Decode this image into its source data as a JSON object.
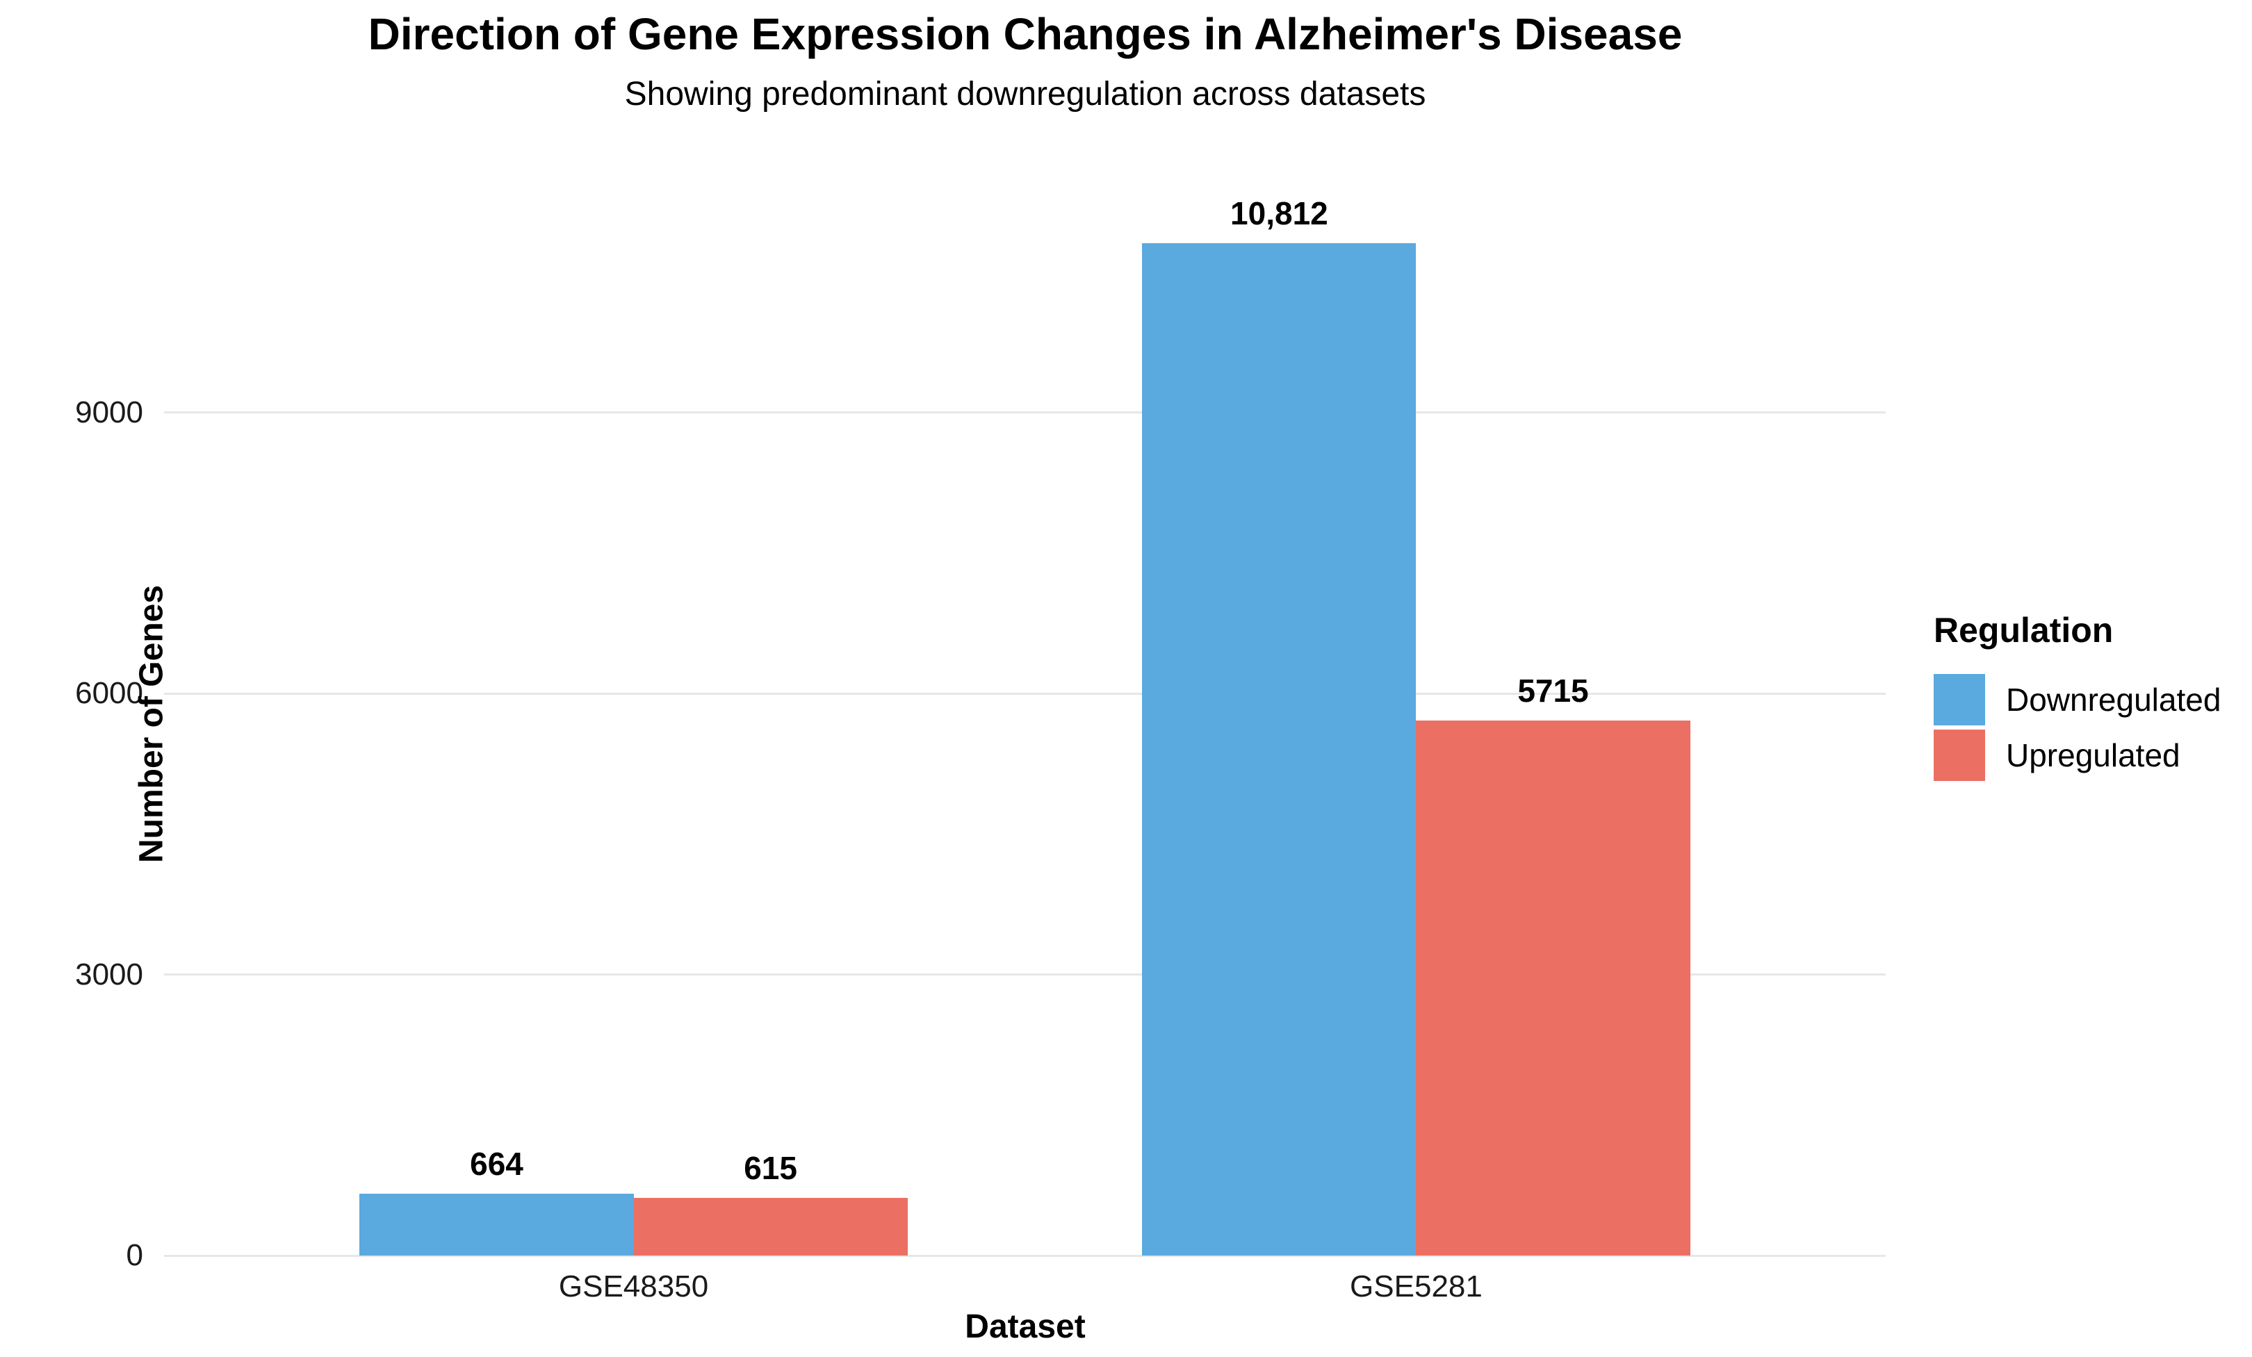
{
  "chart_data": {
    "type": "bar",
    "title": "Direction of Gene Expression Changes in Alzheimer's Disease",
    "subtitle": "Showing predominant downregulation across datasets",
    "xlabel": "Dataset",
    "ylabel": "Number of Genes",
    "categories": [
      "GSE48350",
      "GSE5281"
    ],
    "series": [
      {
        "name": "Downregulated",
        "color": "#5AA9DF",
        "values": [
          664,
          10812
        ],
        "value_labels": [
          "664",
          "10,812"
        ]
      },
      {
        "name": "Upregulated",
        "color": "#EC6F63",
        "values": [
          615,
          5715
        ],
        "value_labels": [
          "615",
          "5715"
        ]
      }
    ],
    "yticks": [
      0,
      3000,
      6000,
      9000
    ],
    "ytick_labels": [
      "0",
      "3000",
      "6000",
      "9000"
    ],
    "ylim": [
      0,
      11350
    ],
    "grid": "horizontal",
    "legend": {
      "title": "Regulation",
      "position": "right"
    },
    "colors": {
      "background": "#ffffff",
      "gridline": "#e7e7e7",
      "text": "#000000"
    }
  }
}
